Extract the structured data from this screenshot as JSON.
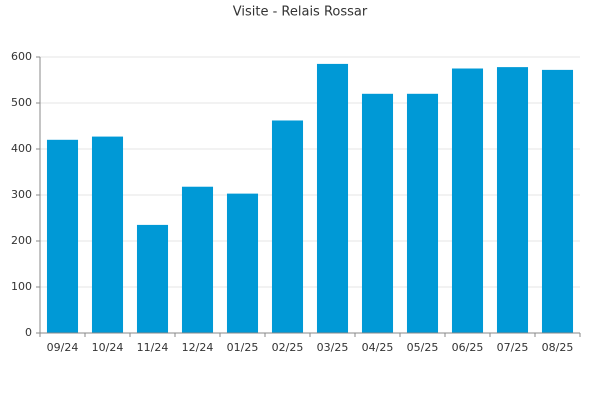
{
  "chart_data": {
    "type": "bar",
    "title": "Visite - Relais Rossar",
    "categories": [
      "09/24",
      "10/24",
      "11/24",
      "12/24",
      "01/25",
      "02/25",
      "03/25",
      "04/25",
      "05/25",
      "06/25",
      "07/25",
      "08/25"
    ],
    "values": [
      420,
      427,
      235,
      318,
      303,
      462,
      585,
      520,
      520,
      575,
      578,
      572
    ],
    "color": "#0099d6",
    "ylim": [
      0,
      600
    ],
    "yticks": [
      0,
      100,
      200,
      300,
      400,
      500,
      600
    ],
    "grid": true
  }
}
